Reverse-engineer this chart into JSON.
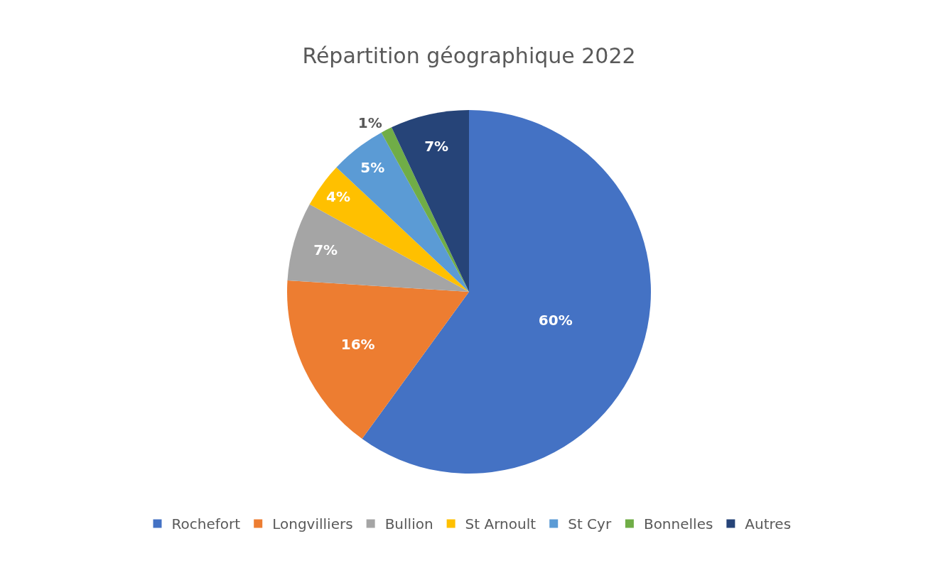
{
  "chart_data": {
    "type": "pie",
    "title": "Répartition géographique 2022",
    "categories": [
      "Rochefort",
      "Longvilliers",
      "Bullion",
      "St Arnoult",
      "St Cyr",
      "Bonnelles",
      "Autres"
    ],
    "values": [
      60,
      16,
      7,
      4,
      5,
      1,
      7
    ],
    "value_labels": [
      "60%",
      "16%",
      "7%",
      "4%",
      "5%",
      "1%",
      "7%"
    ],
    "colors": [
      "#4472c4",
      "#ed7d31",
      "#a5a5a5",
      "#ffc000",
      "#5b9bd5",
      "#70ad47",
      "#264478"
    ],
    "legend": "bottom"
  }
}
